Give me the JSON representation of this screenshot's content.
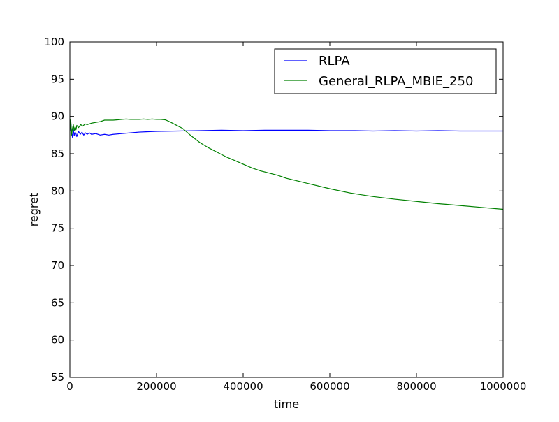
{
  "chart_data": {
    "type": "line",
    "title": "",
    "xlabel": "time",
    "ylabel": "regret",
    "xlim": [
      0,
      1000000
    ],
    "ylim": [
      55,
      100
    ],
    "x_ticks": [
      0,
      200000,
      400000,
      600000,
      800000,
      1000000
    ],
    "y_ticks": [
      55,
      60,
      65,
      70,
      75,
      80,
      85,
      90,
      95,
      100
    ],
    "x_tick_labels": [
      "0",
      "200000",
      "400000",
      "600000",
      "800000",
      "1000000"
    ],
    "y_tick_labels": [
      "55",
      "60",
      "65",
      "70",
      "75",
      "80",
      "85",
      "90",
      "95",
      "100"
    ],
    "grid": false,
    "legend_position": "top-right",
    "series": [
      {
        "name": "RLPA",
        "color": "#0000ff",
        "x": [
          0,
          2000,
          4000,
          6000,
          8000,
          10000,
          12000,
          14000,
          16000,
          20000,
          24000,
          28000,
          32000,
          36000,
          40000,
          45000,
          50000,
          60000,
          70000,
          80000,
          90000,
          100000,
          120000,
          140000,
          160000,
          180000,
          200000,
          250000,
          300000,
          350000,
          400000,
          450000,
          500000,
          550000,
          600000,
          650000,
          700000,
          750000,
          800000,
          850000,
          900000,
          950000,
          1000000
        ],
        "y": [
          88.0,
          89.3,
          87.8,
          87.2,
          88.2,
          87.4,
          87.9,
          87.7,
          87.3,
          88.0,
          87.6,
          87.9,
          87.5,
          87.8,
          87.6,
          87.8,
          87.6,
          87.7,
          87.5,
          87.6,
          87.5,
          87.6,
          87.7,
          87.8,
          87.9,
          87.95,
          88.0,
          88.05,
          88.1,
          88.15,
          88.1,
          88.15,
          88.15,
          88.15,
          88.1,
          88.1,
          88.05,
          88.1,
          88.05,
          88.1,
          88.05,
          88.05,
          88.05
        ]
      },
      {
        "name": "General_RLPA_MBIE_250",
        "color": "#008000",
        "x": [
          0,
          2000,
          4000,
          6000,
          8000,
          10000,
          12000,
          14000,
          16000,
          20000,
          25000,
          30000,
          35000,
          40000,
          50000,
          60000,
          70000,
          80000,
          90000,
          100000,
          110000,
          120000,
          130000,
          140000,
          150000,
          160000,
          170000,
          180000,
          190000,
          200000,
          210000,
          220000,
          230000,
          240000,
          250000,
          260000,
          270000,
          280000,
          300000,
          320000,
          340000,
          360000,
          380000,
          400000,
          420000,
          440000,
          460000,
          480000,
          500000,
          550000,
          600000,
          650000,
          700000,
          750000,
          800000,
          850000,
          900000,
          950000,
          1000000
        ],
        "y": [
          88.0,
          89.6,
          87.5,
          88.4,
          88.9,
          88.1,
          88.6,
          88.2,
          88.8,
          88.5,
          88.9,
          88.7,
          89.0,
          88.9,
          89.1,
          89.2,
          89.3,
          89.5,
          89.5,
          89.5,
          89.55,
          89.6,
          89.65,
          89.6,
          89.6,
          89.6,
          89.65,
          89.6,
          89.65,
          89.6,
          89.6,
          89.55,
          89.3,
          89.0,
          88.7,
          88.4,
          87.9,
          87.4,
          86.5,
          85.8,
          85.2,
          84.6,
          84.1,
          83.6,
          83.1,
          82.7,
          82.4,
          82.1,
          81.7,
          81.0,
          80.3,
          79.7,
          79.25,
          78.9,
          78.6,
          78.3,
          78.05,
          77.8,
          77.55
        ]
      }
    ]
  }
}
